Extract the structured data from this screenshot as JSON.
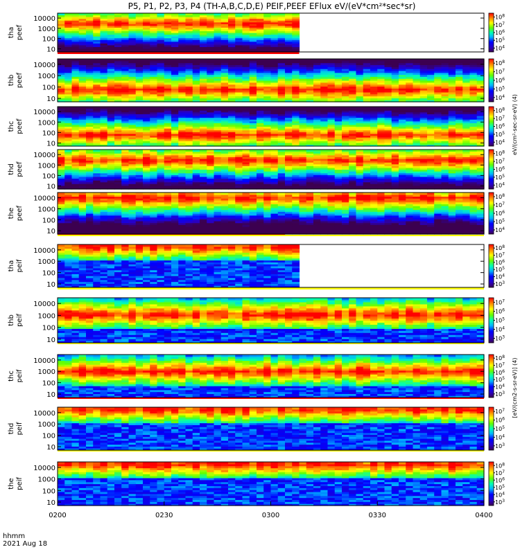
{
  "chart_data": {
    "type": "heatmap",
    "title": "P5, P1, P2, P3, P4 (TH-A,B,C,D,E) PEIF,PEEF EFlux eV/(eV*cm²*sec*sr)",
    "x_axis": {
      "tick_labels": [
        "0200",
        "0230",
        "0300",
        "0330",
        "0400"
      ],
      "range": [
        "02:00",
        "04:00"
      ],
      "label_lines": [
        "hhmm",
        "2021 Aug 18"
      ]
    },
    "y_axis": {
      "scale": "log",
      "range": [
        5,
        30000
      ],
      "tick_values": [
        10,
        100,
        1000,
        10000
      ],
      "tick_labels": [
        "10",
        "100",
        "1000",
        "10000"
      ]
    },
    "colorbar": {
      "scale": "log",
      "colormap": "rainbow",
      "label_electron": "eV/(cm²-sec-sr-eV) (4)",
      "label_ion": "[eV/(cm2-s-sr-eV)] (4)"
    },
    "panels": [
      {
        "probe": "tha",
        "species": "peef",
        "label": [
          "tha",
          "peef"
        ],
        "data_end_hhmm": "03:08",
        "dominant_energy_ev": 3000,
        "cbar_exps": [
          4,
          5,
          6,
          7,
          8
        ],
        "flags": [
          {
            "color": "#ff0000",
            "end_hhmm": "03:08"
          }
        ]
      },
      {
        "probe": "thb",
        "species": "peef",
        "label": [
          "thb",
          "peef"
        ],
        "data_end_hhmm": "04:00",
        "dominant_energy_ev": 60,
        "cbar_exps": [
          4,
          5,
          6,
          7,
          8
        ],
        "flags": []
      },
      {
        "probe": "thc",
        "species": "peef",
        "label": [
          "thc",
          "peef"
        ],
        "data_end_hhmm": "04:00",
        "dominant_energy_ev": 60,
        "cbar_exps": [
          4,
          5,
          6,
          7,
          8
        ],
        "flags": []
      },
      {
        "probe": "thd",
        "species": "peef",
        "label": [
          "thd",
          "peef"
        ],
        "data_end_hhmm": "04:00",
        "dominant_energy_ev": 3000,
        "cbar_exps": [
          4,
          5,
          6,
          7,
          8
        ],
        "flags": []
      },
      {
        "probe": "the",
        "species": "peef",
        "label": [
          "the",
          "peef"
        ],
        "data_end_hhmm": "04:00",
        "dominant_energy_ev": 10000,
        "cbar_exps": [
          4,
          5,
          6,
          7,
          8
        ],
        "flags": [
          {
            "color": "#ff0000",
            "end_hhmm": "03:04"
          },
          {
            "color": "#ffff00",
            "end_hhmm": "04:00"
          }
        ]
      },
      {
        "probe": "tha",
        "species": "peif",
        "label": [
          "tha",
          "peif"
        ],
        "data_end_hhmm": "03:08",
        "dominant_energy_ev": 20000,
        "cbar_exps": [
          3,
          4,
          5,
          6,
          7,
          8
        ],
        "flags": [
          {
            "color": "#ffff00",
            "end_hhmm": "04:00"
          }
        ]
      },
      {
        "probe": "thb",
        "species": "peif",
        "label": [
          "thb",
          "peif"
        ],
        "data_end_hhmm": "04:00",
        "dominant_energy_ev": 1200,
        "cbar_exps": [
          3,
          4,
          5,
          6,
          7
        ],
        "flags": [
          {
            "color": "#ffff00",
            "end_hhmm": "04:00"
          }
        ]
      },
      {
        "probe": "thc",
        "species": "peif",
        "label": [
          "thc",
          "peif"
        ],
        "data_end_hhmm": "04:00",
        "dominant_energy_ev": 1000,
        "cbar_exps": [
          3,
          4,
          5,
          6,
          7,
          8
        ],
        "flags": [
          {
            "color": "#ff0000",
            "end_hhmm": "04:00"
          }
        ]
      },
      {
        "probe": "thd",
        "species": "peif",
        "label": [
          "thd",
          "peif"
        ],
        "data_end_hhmm": "04:00",
        "dominant_energy_ev": 20000,
        "cbar_exps": [
          3,
          4,
          5,
          6,
          7
        ],
        "flags": [
          {
            "color": "#ffff00",
            "end_hhmm": "04:00"
          }
        ]
      },
      {
        "probe": "the",
        "species": "peif",
        "label": [
          "the",
          "peif"
        ],
        "data_end_hhmm": "04:00",
        "dominant_energy_ev": 20000,
        "cbar_exps": [
          3,
          4,
          5,
          6,
          7,
          8
        ],
        "flags": []
      }
    ]
  }
}
